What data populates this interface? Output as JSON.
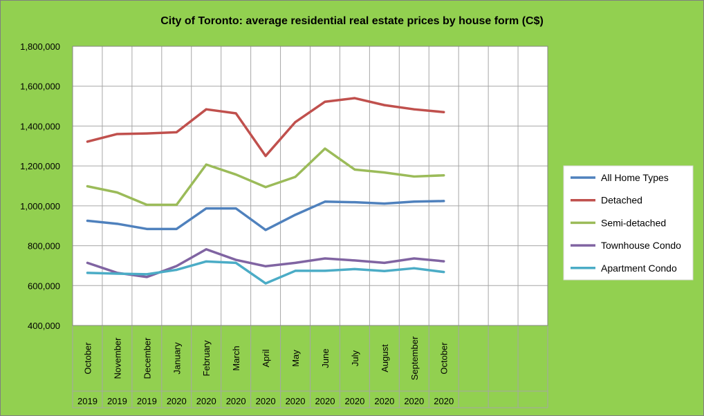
{
  "chart_data": {
    "type": "line",
    "title": "City of Toronto: average residential real estate prices by house form (C$)",
    "xlabel": "",
    "ylabel": "",
    "ylim": [
      400000,
      1800000
    ],
    "yticks": [
      400000,
      600000,
      800000,
      1000000,
      1200000,
      1400000,
      1600000,
      1800000
    ],
    "ytick_labels": [
      "400,000",
      "600,000",
      "800,000",
      "1,000,000",
      "1,200,000",
      "1,400,000",
      "1,600,000",
      "1,800,000"
    ],
    "categories": [
      "October",
      "November",
      "December",
      "January",
      "February",
      "March",
      "April",
      "May",
      "June",
      "July",
      "August",
      "September",
      "October"
    ],
    "category_years": [
      "2019",
      "2019",
      "2019",
      "2020",
      "2020",
      "2020",
      "2020",
      "2020",
      "2020",
      "2020",
      "2020",
      "2020",
      "2020"
    ],
    "category_slots": 16,
    "grid": true,
    "legend_position": "right",
    "background_color": "#92d050",
    "plot_background_color": "#ffffff",
    "grid_color": "#a6a6a6",
    "series": [
      {
        "name": "All Home Types",
        "color": "#4f81bd",
        "values": [
          925000,
          910000,
          884000,
          884000,
          987000,
          987000,
          879000,
          955000,
          1021000,
          1018000,
          1011000,
          1021000,
          1024000
        ]
      },
      {
        "name": "Detached",
        "color": "#c0504d",
        "values": [
          1322000,
          1360000,
          1363000,
          1369000,
          1484000,
          1464000,
          1250000,
          1420000,
          1522000,
          1540000,
          1505000,
          1484000,
          1470000
        ]
      },
      {
        "name": "Semi-detached",
        "color": "#9bbb59",
        "values": [
          1098000,
          1067000,
          1005000,
          1005000,
          1207000,
          1157000,
          1094000,
          1145000,
          1287000,
          1182000,
          1167000,
          1147000,
          1153000
        ]
      },
      {
        "name": "Townhouse Condo",
        "color": "#8064a2",
        "values": [
          714000,
          664000,
          643000,
          698000,
          782000,
          729000,
          697000,
          714000,
          736000,
          726000,
          714000,
          736000,
          722000
        ]
      },
      {
        "name": "Apartment Condo",
        "color": "#4bacc6",
        "values": [
          664000,
          660000,
          657000,
          679000,
          721000,
          714000,
          611000,
          674000,
          674000,
          683000,
          673000,
          687000,
          668000
        ]
      }
    ]
  }
}
